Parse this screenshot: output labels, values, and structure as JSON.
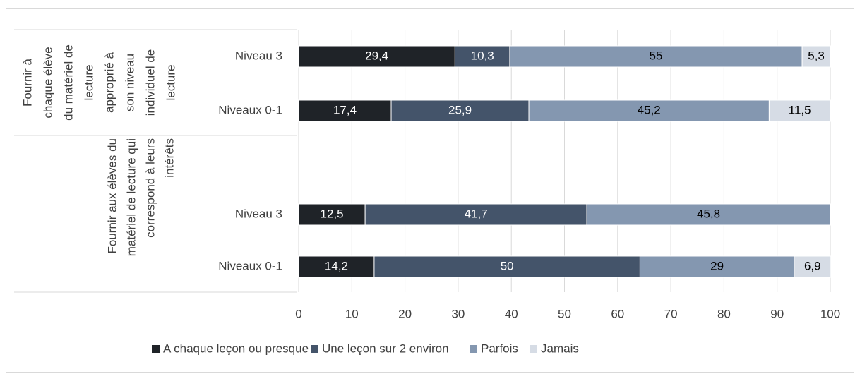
{
  "chart_data": {
    "type": "stacked-barh",
    "groups": [
      {
        "label_lines": [
          "Fournir à",
          "chaque élève",
          "du matériel de",
          "lecture",
          "approprié à",
          "son niveau",
          "individuel de",
          "lecture"
        ]
      },
      {
        "label_lines": [
          "Fournir aux élèves du",
          "matériel de lecture qui",
          "correspond à leurs",
          "intérêts"
        ]
      }
    ],
    "categories": [
      "Niveau 3",
      "Niveaux 0-1",
      "Niveau 3",
      "Niveaux 0-1"
    ],
    "series": [
      {
        "name": "A chaque leçon ou presque",
        "color": "#1f2328",
        "values": [
          29.4,
          17.4,
          12.5,
          14.2
        ],
        "value_labels": [
          "29,4",
          "17,4",
          "12,5",
          "14,2"
        ]
      },
      {
        "name": "Une leçon sur 2 environ",
        "color": "#44546a",
        "values": [
          10.3,
          25.9,
          41.7,
          50
        ],
        "value_labels": [
          "10,3",
          "25,9",
          "41,7",
          "50"
        ]
      },
      {
        "name": "Parfois",
        "color": "#8497b0",
        "values": [
          55,
          45.2,
          45.8,
          29
        ],
        "value_labels": [
          "55",
          "45,2",
          "45,8",
          "29"
        ]
      },
      {
        "name": "Jamais",
        "color": "#d6dce5",
        "values": [
          5.3,
          11.5,
          null,
          6.9
        ],
        "value_labels": [
          "5,3",
          "11,5",
          null,
          "6,9"
        ]
      }
    ],
    "xlim": [
      0,
      100
    ],
    "xticks": [
      0,
      10,
      20,
      30,
      40,
      50,
      60,
      70,
      80,
      90,
      100
    ],
    "grid": true,
    "legend": "bottom"
  }
}
